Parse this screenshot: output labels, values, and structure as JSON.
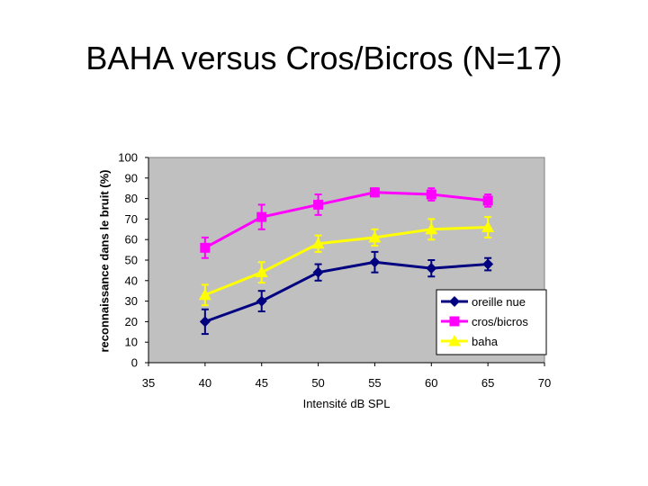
{
  "page": {
    "title": "BAHA versus Cros/Bicros (N=17)"
  },
  "chart_data": {
    "type": "line",
    "title": "BAHA versus Cros/Bicros (N=17)",
    "xlabel": "Intensité dB SPL",
    "ylabel": "reconnaissance dans le bruit (%)",
    "xlim": [
      35,
      70
    ],
    "ylim": [
      0,
      100
    ],
    "xticks": [
      35,
      40,
      45,
      50,
      55,
      60,
      65,
      70
    ],
    "yticks": [
      0,
      10,
      20,
      30,
      40,
      50,
      60,
      70,
      80,
      90,
      100
    ],
    "grid": false,
    "legend_position": "bottom-right",
    "plot_background": "#c0c0c0",
    "series": [
      {
        "name": "oreille nue",
        "color": "#000080",
        "marker": "diamond",
        "x": [
          40,
          45,
          50,
          55,
          60,
          65
        ],
        "y": [
          20,
          30,
          44,
          49,
          46,
          48
        ],
        "err_low": [
          6,
          5,
          4,
          5,
          4,
          3
        ],
        "err_high": [
          6,
          5,
          4,
          5,
          4,
          3
        ]
      },
      {
        "name": "cros/bicros",
        "color": "#ff00ff",
        "marker": "square",
        "x": [
          40,
          45,
          50,
          55,
          60,
          65
        ],
        "y": [
          56,
          71,
          77,
          83,
          82,
          79
        ],
        "err_low": [
          5,
          6,
          5,
          2,
          3,
          3
        ],
        "err_high": [
          5,
          6,
          5,
          2,
          3,
          3
        ]
      },
      {
        "name": "baha",
        "color": "#ffff00",
        "marker": "triangle",
        "x": [
          40,
          45,
          50,
          55,
          60,
          65
        ],
        "y": [
          33,
          44,
          58,
          61,
          65,
          66
        ],
        "err_low": [
          5,
          5,
          4,
          4,
          5,
          5
        ],
        "err_high": [
          5,
          5,
          4,
          4,
          5,
          5
        ]
      }
    ]
  }
}
